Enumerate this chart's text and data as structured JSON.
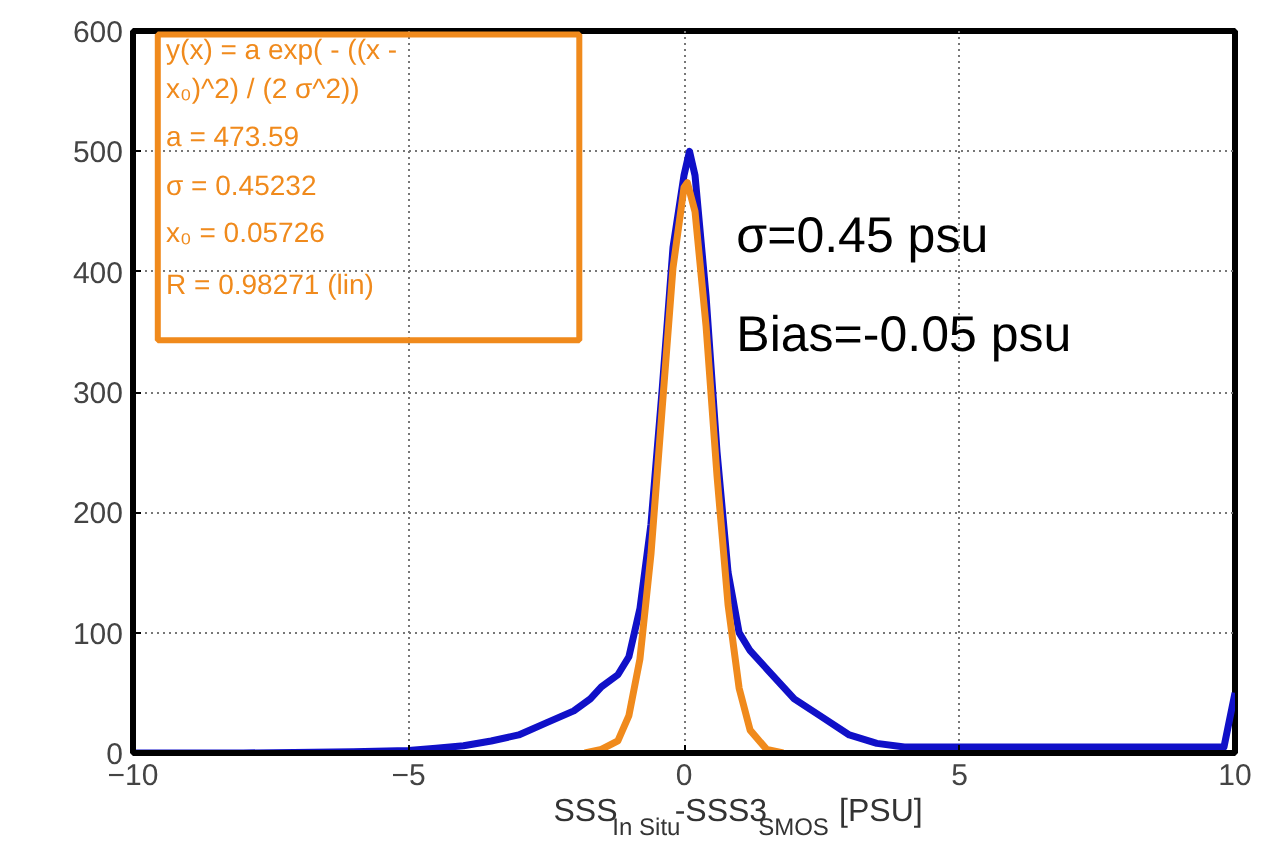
{
  "chart_data": {
    "type": "line",
    "xlabel": "SSS$_{In Situ}$-SSS3$_{SMOS}$ [PSU]",
    "xlim": [
      -10,
      10
    ],
    "xticks": [
      -10,
      -5,
      0,
      5,
      10
    ],
    "ylim": [
      0,
      600
    ],
    "yticks": [
      0,
      100,
      200,
      300,
      400,
      500,
      600
    ],
    "grid": true,
    "line_style": "solid",
    "series": [
      {
        "color": "#1010c8",
        "x": [
          -10,
          -8,
          -6,
          -5,
          -4.5,
          -4,
          -3.5,
          -3,
          -2.5,
          -2,
          -1.7,
          -1.5,
          -1.2,
          -1,
          -0.8,
          -0.6,
          -0.4,
          -0.2,
          0,
          0.1,
          0.2,
          0.4,
          0.6,
          0.8,
          1,
          1.2,
          1.5,
          1.8,
          2,
          2.5,
          3,
          3.5,
          4,
          5,
          6,
          7,
          8,
          9,
          9.8,
          10
        ],
        "values": [
          0,
          0,
          1,
          2,
          4,
          6,
          10,
          15,
          25,
          35,
          45,
          55,
          65,
          80,
          120,
          190,
          300,
          420,
          480,
          500,
          480,
          380,
          250,
          150,
          100,
          85,
          70,
          55,
          45,
          30,
          15,
          8,
          5,
          5,
          5,
          5,
          5,
          5,
          5,
          50
        ]
      },
      {
        "color": "#f08a1c",
        "x": [
          -1.8,
          -1.5,
          -1.2,
          -1,
          -0.8,
          -0.6,
          -0.4,
          -0.2,
          0,
          0.06,
          0.2,
          0.4,
          0.6,
          0.8,
          1,
          1.2,
          1.5,
          1.8
        ],
        "values": [
          0,
          3,
          10,
          31,
          78,
          165,
          284,
          403,
          470,
          474,
          450,
          355,
          230,
          123,
          54,
          19,
          3,
          0
        ]
      }
    ],
    "annotations": [
      "y(x) = a exp( - ((x -",
      "x₀)^2) / (2 σ^2))",
      "a = 473.59",
      "σ = 0.45232",
      "x₀ = 0.05726",
      "R = 0.98271  (lin)",
      "σ=0.45 psu",
      "Bias=-0.05 psu"
    ]
  }
}
